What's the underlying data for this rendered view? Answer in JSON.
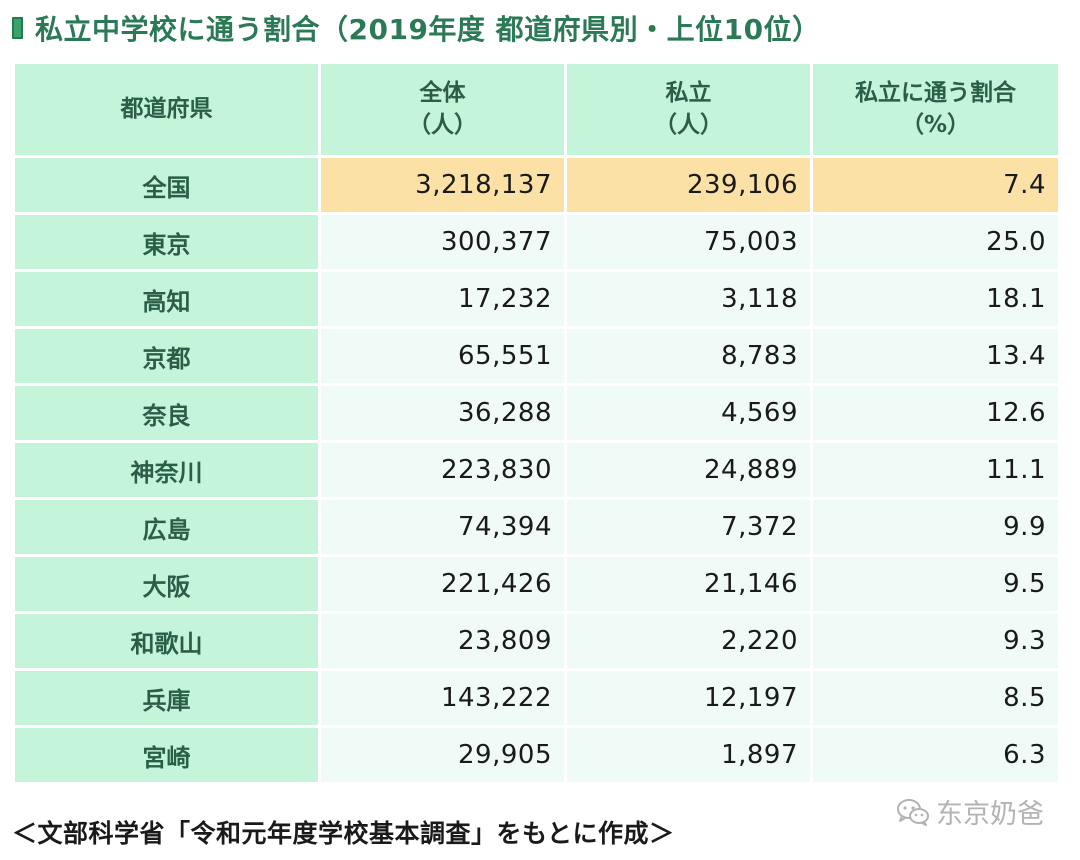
{
  "title": "私立中学校に通う割合（2019年度 都道府県別・上位10位）",
  "table": {
    "headers": {
      "pref": "都道府県",
      "total_line1": "全体",
      "total_line2": "（人）",
      "private_line1": "私立",
      "private_line2": "（人）",
      "ratio_line1": "私立に通う割合",
      "ratio_line2": "（%）"
    },
    "national": {
      "pref": "全国",
      "total": "3,218,137",
      "private": "239,106",
      "ratio": "7.4"
    },
    "rows": [
      {
        "pref": "東京",
        "total": "300,377",
        "private": "75,003",
        "ratio": "25.0"
      },
      {
        "pref": "高知",
        "total": "17,232",
        "private": "3,118",
        "ratio": "18.1"
      },
      {
        "pref": "京都",
        "total": "65,551",
        "private": "8,783",
        "ratio": "13.4"
      },
      {
        "pref": "奈良",
        "total": "36,288",
        "private": "4,569",
        "ratio": "12.6"
      },
      {
        "pref": "神奈川",
        "total": "223,830",
        "private": "24,889",
        "ratio": "11.1"
      },
      {
        "pref": "広島",
        "total": "74,394",
        "private": "7,372",
        "ratio": "9.9"
      },
      {
        "pref": "大阪",
        "total": "221,426",
        "private": "21,146",
        "ratio": "9.5"
      },
      {
        "pref": "和歌山",
        "total": "23,809",
        "private": "2,220",
        "ratio": "9.3"
      },
      {
        "pref": "兵庫",
        "total": "143,222",
        "private": "12,197",
        "ratio": "8.5"
      },
      {
        "pref": "宮崎",
        "total": "29,905",
        "private": "1,897",
        "ratio": "6.3"
      }
    ]
  },
  "source": "＜文部科学省「令和元年度学校基本調査」をもとに作成＞",
  "watermark": "东京奶爸",
  "colors": {
    "header_bg": "#c4f5da",
    "national_bg": "#fbe1a6",
    "cell_bg": "#f0fbf7",
    "title_text": "#2b7a55"
  }
}
